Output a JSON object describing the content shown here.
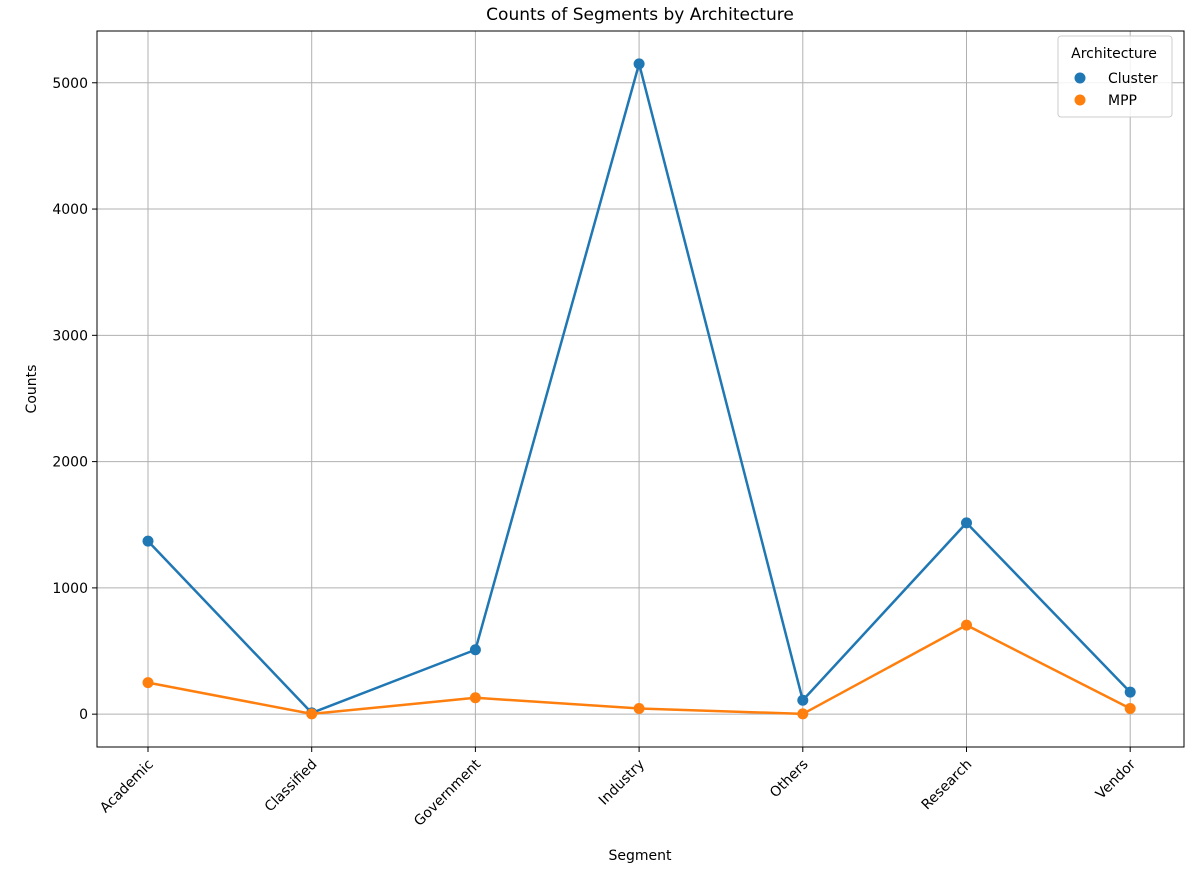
{
  "chart_data": {
    "type": "line",
    "title": "Counts of Segments by Architecture",
    "xlabel": "Segment",
    "ylabel": "Counts",
    "categories": [
      "Academic",
      "Classified",
      "Government",
      "Industry",
      "Others",
      "Research",
      "Vendor"
    ],
    "series": [
      {
        "name": "Cluster",
        "color": "#1f77b4",
        "values": [
          1370,
          10,
          510,
          5150,
          110,
          1515,
          175
        ]
      },
      {
        "name": "MPP",
        "color": "#ff7f0e",
        "values": [
          250,
          2,
          130,
          45,
          2,
          705,
          45
        ]
      }
    ],
    "ylim": [
      -260,
      5410
    ],
    "yticks": [
      0,
      1000,
      2000,
      3000,
      4000,
      5000
    ],
    "grid": true,
    "legend": {
      "title": "Architecture",
      "placement": "top-right"
    }
  }
}
